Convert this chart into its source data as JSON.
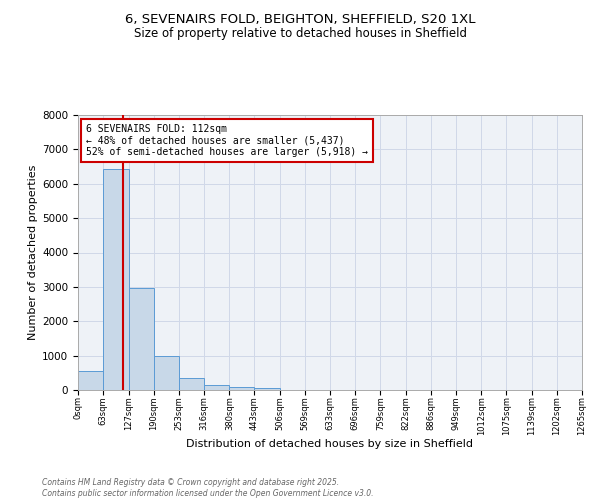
{
  "title1": "6, SEVENAIRS FOLD, BEIGHTON, SHEFFIELD, S20 1XL",
  "title2": "Size of property relative to detached houses in Sheffield",
  "xlabel": "Distribution of detached houses by size in Sheffield",
  "ylabel": "Number of detached properties",
  "bar_edges": [
    0,
    63,
    127,
    190,
    253,
    316,
    380,
    443,
    506,
    569,
    633,
    696,
    759,
    822,
    886,
    949,
    1012,
    1075,
    1139,
    1202,
    1265
  ],
  "bar_heights": [
    560,
    6430,
    2970,
    990,
    360,
    160,
    100,
    60,
    0,
    0,
    0,
    0,
    0,
    0,
    0,
    0,
    0,
    0,
    0,
    0
  ],
  "bar_color": "#c8d8e8",
  "bar_edge_color": "#5b9bd5",
  "vline_x": 112,
  "vline_color": "#cc0000",
  "annotation_text": "6 SEVENAIRS FOLD: 112sqm\n← 48% of detached houses are smaller (5,437)\n52% of semi-detached houses are larger (5,918) →",
  "annotation_box_edge": "#cc0000",
  "annotation_box_face": "#ffffff",
  "ylim": [
    0,
    8000
  ],
  "yticks": [
    0,
    1000,
    2000,
    3000,
    4000,
    5000,
    6000,
    7000,
    8000
  ],
  "tick_labels": [
    "0sqm",
    "63sqm",
    "127sqm",
    "190sqm",
    "253sqm",
    "316sqm",
    "380sqm",
    "443sqm",
    "506sqm",
    "569sqm",
    "633sqm",
    "696sqm",
    "759sqm",
    "822sqm",
    "886sqm",
    "949sqm",
    "1012sqm",
    "1075sqm",
    "1139sqm",
    "1202sqm",
    "1265sqm"
  ],
  "footnote": "Contains HM Land Registry data © Crown copyright and database right 2025.\nContains public sector information licensed under the Open Government Licence v3.0.",
  "grid_color": "#d0d8e8",
  "background_color": "#eef2f7"
}
